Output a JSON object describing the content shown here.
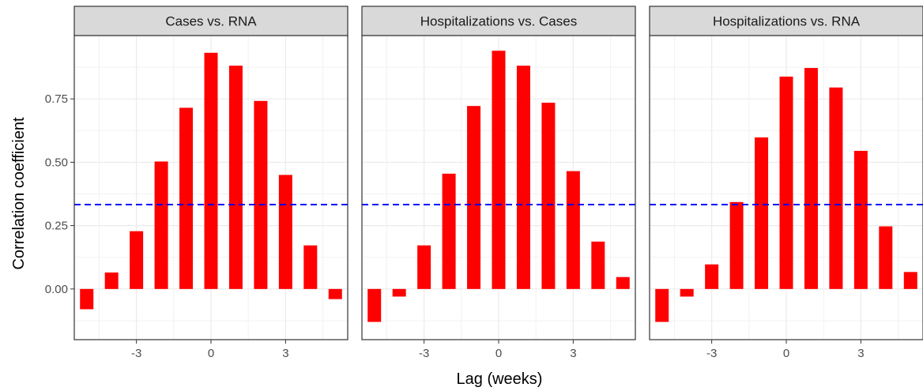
{
  "chart_data": {
    "type": "bar",
    "xlabel": "Lag (weeks)",
    "ylabel": "Correlation coefficient",
    "x_ticks": [
      "-3",
      "0",
      "3"
    ],
    "y_ticks": [
      "0.00",
      "0.25",
      "0.50",
      "0.75"
    ],
    "ylim": [
      -0.2,
      1.0
    ],
    "xlim": [
      -5.5,
      5.5
    ],
    "grid": true,
    "reference_line": {
      "y": 0.333,
      "style": "dashed",
      "color": "#0000ff"
    },
    "bar_color": "#ff0000",
    "lags": [
      -5,
      -4,
      -3,
      -2,
      -1,
      0,
      1,
      2,
      3,
      4,
      5
    ],
    "panels": [
      {
        "title": "Cases vs. RNA",
        "values": [
          -0.08,
          0.065,
          0.228,
          0.503,
          0.715,
          0.932,
          0.881,
          0.742,
          0.45,
          0.172,
          -0.04
        ]
      },
      {
        "title": "Hospitalizations vs. Cases",
        "values": [
          -0.13,
          -0.03,
          0.172,
          0.455,
          0.722,
          0.94,
          0.881,
          0.735,
          0.465,
          0.187,
          0.047
        ]
      },
      {
        "title": "Hospitalizations vs. RNA",
        "values": [
          -0.13,
          -0.03,
          0.097,
          0.343,
          0.598,
          0.838,
          0.872,
          0.795,
          0.545,
          0.247,
          0.067
        ]
      }
    ]
  }
}
